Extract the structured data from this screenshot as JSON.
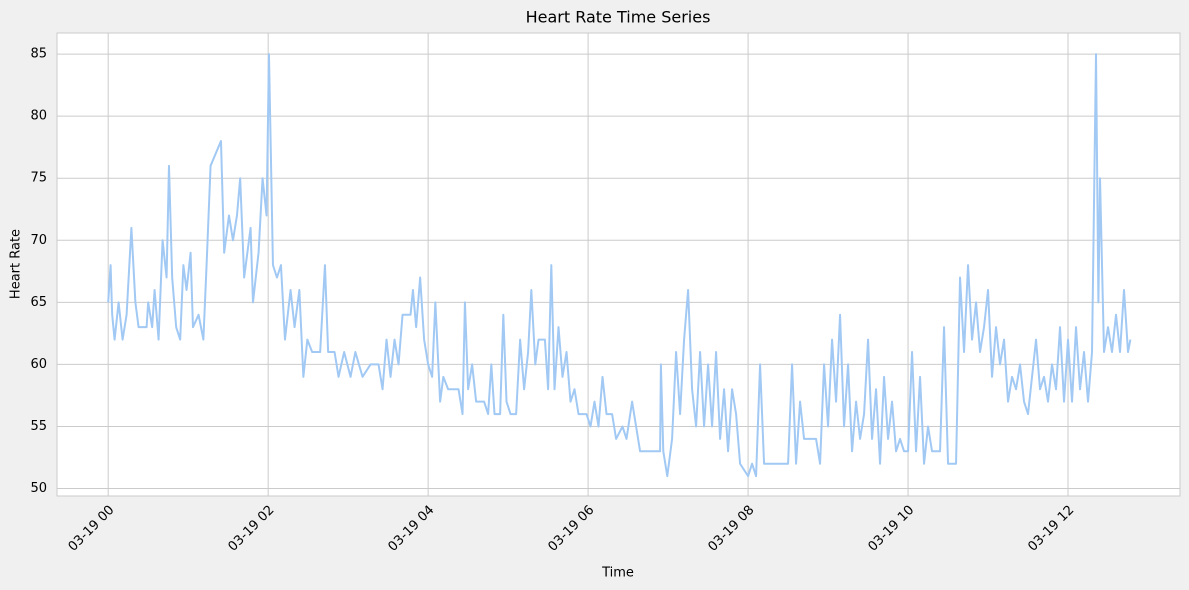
{
  "chart_data": {
    "type": "line",
    "title": "Heart Rate Time Series",
    "xlabel": "Time",
    "ylabel": "Heart Rate",
    "color": "#a1c9f4",
    "grid": true,
    "xlim": [
      -0.64,
      13.4
    ],
    "ylim": [
      49.4,
      86.7
    ],
    "xticks": [
      {
        "value": 0,
        "label": "03-19 00"
      },
      {
        "value": 2,
        "label": "03-19 02"
      },
      {
        "value": 4,
        "label": "03-19 04"
      },
      {
        "value": 6,
        "label": "03-19 06"
      },
      {
        "value": 8,
        "label": "03-19 08"
      },
      {
        "value": 10,
        "label": "03-19 10"
      },
      {
        "value": 12,
        "label": "03-19 12"
      }
    ],
    "yticks": [
      50,
      55,
      60,
      65,
      70,
      75,
      80,
      85
    ],
    "x": [
      0,
      0.03,
      0.05,
      0.08,
      0.13,
      0.18,
      0.23,
      0.29,
      0.34,
      0.38,
      0.48,
      0.5,
      0.55,
      0.58,
      0.63,
      0.68,
      0.73,
      0.76,
      0.8,
      0.85,
      0.9,
      0.94,
      0.98,
      1.03,
      1.06,
      1.13,
      1.19,
      1.23,
      1.28,
      1.41,
      1.45,
      1.51,
      1.56,
      1.61,
      1.65,
      1.7,
      1.78,
      1.81,
      1.88,
      1.93,
      1.98,
      2.01,
      2.06,
      2.11,
      2.16,
      2.21,
      2.28,
      2.33,
      2.39,
      2.44,
      2.49,
      2.55,
      2.65,
      2.71,
      2.75,
      2.83,
      2.88,
      2.95,
      3.03,
      3.09,
      3.18,
      3.28,
      3.38,
      3.43,
      3.48,
      3.53,
      3.58,
      3.63,
      3.68,
      3.78,
      3.81,
      3.85,
      3.9,
      3.95,
      4,
      4.05,
      4.09,
      4.15,
      4.19,
      4.25,
      4.38,
      4.43,
      4.46,
      4.5,
      4.55,
      4.6,
      4.7,
      4.75,
      4.79,
      4.83,
      4.9,
      4.94,
      4.98,
      5.03,
      5.1,
      5.15,
      5.2,
      5.25,
      5.29,
      5.34,
      5.38,
      5.46,
      5.5,
      5.54,
      5.58,
      5.63,
      5.68,
      5.73,
      5.78,
      5.83,
      5.88,
      5.98,
      6.03,
      6.08,
      6.13,
      6.18,
      6.23,
      6.3,
      6.35,
      6.43,
      6.48,
      6.55,
      6.6,
      6.65,
      6.9,
      6.91,
      6.94,
      6.99,
      7.05,
      7.1,
      7.15,
      7.2,
      7.25,
      7.3,
      7.35,
      7.4,
      7.45,
      7.5,
      7.55,
      7.6,
      7.65,
      7.7,
      7.75,
      7.8,
      7.85,
      7.9,
      8.0,
      8.05,
      8.1,
      8.15,
      8.2,
      8.5,
      8.55,
      8.6,
      8.65,
      8.7,
      8.85,
      8.9,
      8.95,
      9.0,
      9.05,
      9.1,
      9.15,
      9.2,
      9.25,
      9.3,
      9.35,
      9.4,
      9.45,
      9.5,
      9.55,
      9.6,
      9.65,
      9.7,
      9.75,
      9.8,
      9.85,
      9.9,
      9.95,
      10.0,
      10.05,
      10.1,
      10.15,
      10.2,
      10.25,
      10.3,
      10.4,
      10.45,
      10.5,
      10.6,
      10.65,
      10.7,
      10.75,
      10.8,
      10.85,
      10.9,
      10.95,
      11.0,
      11.05,
      11.1,
      11.15,
      11.2,
      11.25,
      11.3,
      11.35,
      11.4,
      11.45,
      11.5,
      11.55,
      11.6,
      11.65,
      11.7,
      11.75,
      11.8,
      11.85,
      11.9,
      11.95,
      12.0,
      12.05,
      12.1,
      12.15,
      12.2,
      12.25,
      12.3,
      12.35,
      12.38,
      12.4,
      12.45,
      12.5,
      12.55,
      12.6,
      12.65,
      12.7,
      12.75,
      12.78
    ],
    "values": [
      65,
      68,
      64,
      62,
      65,
      62,
      64,
      71,
      65,
      63,
      63,
      65,
      63,
      66,
      62,
      70,
      67,
      76,
      67,
      63,
      62,
      68,
      66,
      69,
      63,
      64,
      62,
      68,
      76,
      78,
      69,
      72,
      70,
      72,
      75,
      67,
      71,
      65,
      69,
      75,
      72,
      85,
      68,
      67,
      68,
      62,
      66,
      63,
      66,
      59,
      62,
      61,
      61,
      68,
      61,
      61,
      59,
      61,
      59,
      61,
      59,
      60,
      60,
      58,
      62,
      59,
      62,
      60,
      64,
      64,
      66,
      63,
      67,
      62,
      60,
      59,
      65,
      57,
      59,
      58,
      58,
      56,
      65,
      58,
      60,
      57,
      57,
      56,
      60,
      56,
      56,
      64,
      57,
      56,
      56,
      62,
      58,
      61,
      66,
      60,
      62,
      62,
      58,
      68,
      58,
      63,
      59,
      61,
      57,
      58,
      56,
      56,
      55,
      57,
      55,
      59,
      56,
      56,
      54,
      55,
      54,
      57,
      55,
      53,
      53,
      60,
      53,
      51,
      54,
      61,
      56,
      62,
      66,
      58,
      55,
      61,
      55,
      60,
      55,
      61,
      54,
      58,
      53,
      58,
      56,
      52,
      51,
      52,
      51,
      60,
      52,
      52,
      60,
      52,
      57,
      54,
      54,
      52,
      60,
      55,
      62,
      57,
      64,
      55,
      60,
      53,
      57,
      54,
      56,
      62,
      54,
      58,
      52,
      59,
      54,
      57,
      53,
      54,
      53,
      53,
      61,
      53,
      59,
      52,
      55,
      53,
      53,
      63,
      52,
      52,
      67,
      61,
      68,
      62,
      65,
      61,
      63,
      66,
      59,
      63,
      60,
      62,
      57,
      59,
      58,
      60,
      57,
      56,
      59,
      62,
      58,
      59,
      57,
      60,
      58,
      63,
      57,
      62,
      57,
      63,
      58,
      61,
      57,
      61,
      85,
      65,
      75,
      61,
      63,
      61,
      64,
      61,
      66,
      61,
      62
    ]
  }
}
